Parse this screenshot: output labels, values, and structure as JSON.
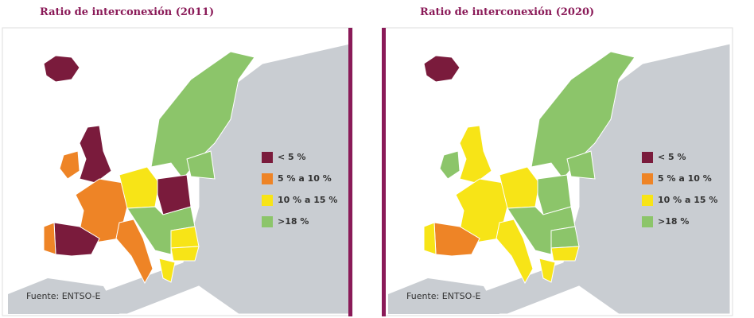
{
  "panels": [
    {
      "title": "Ratio de interconexión (2011)",
      "legend": [
        {
          "label": "< 5 %",
          "color": "#7a1b3c"
        },
        {
          "label": "5 % a 10 %",
          "color": "#ee8426"
        },
        {
          "label": "10 % a 15 %",
          "color": "#f7e417"
        },
        {
          "label": ">18 %",
          "color": "#8cc56a"
        }
      ],
      "source": "Fuente: ENTSO-E"
    },
    {
      "title": "Ratio de interconexión (2020)",
      "legend": [
        {
          "label": "< 5 %",
          "color": "#7a1b3c"
        },
        {
          "label": "5 % a 10 %",
          "color": "#ee8426"
        },
        {
          "label": "10 % a 15 %",
          "color": "#f7e417"
        },
        {
          "label": ">18 %",
          "color": "#8cc56a"
        }
      ],
      "source": "Fuente: ENTSO-E"
    }
  ]
}
